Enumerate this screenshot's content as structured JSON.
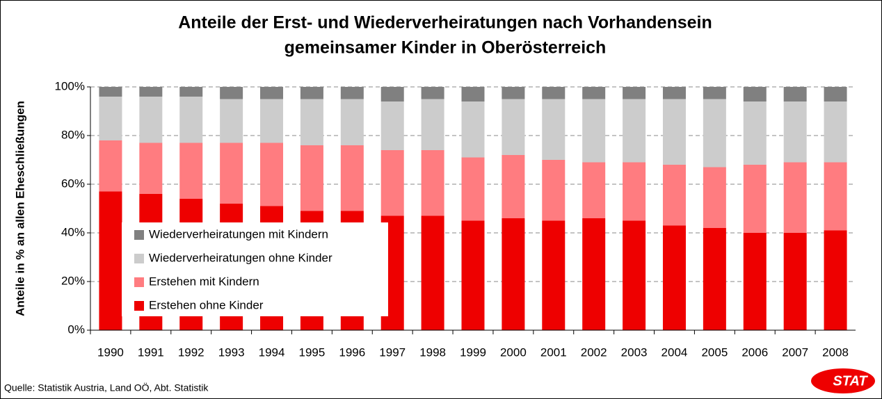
{
  "chart_data": {
    "type": "stacked_bar",
    "title": [
      "Anteile der Erst- und Wiederverheiratungen nach Vorhandensein",
      "gemeinsamer Kinder in Oberösterreich"
    ],
    "y_label": "Anteile in % an allen Eheschließungen",
    "source": "Quelle: Statistik Austria, Land OÖ, Abt. Statistik",
    "logo": "STAT",
    "categories": [
      "1990",
      "1991",
      "1992",
      "1993",
      "1994",
      "1995",
      "1996",
      "1997",
      "1998",
      "1999",
      "2000",
      "2001",
      "2002",
      "2003",
      "2004",
      "2005",
      "2006",
      "2007",
      "2008"
    ],
    "series": [
      {
        "name": "Erstehen ohne Kinder",
        "color": "#ee0000",
        "values": [
          57,
          56,
          54,
          52,
          51,
          49,
          49,
          47,
          47,
          45,
          46,
          45,
          46,
          45,
          43,
          42,
          40,
          40,
          41
        ]
      },
      {
        "name": "Erstehen mit Kindern",
        "color": "#ff7c80",
        "values": [
          21,
          21,
          23,
          25,
          26,
          27,
          27,
          27,
          27,
          26,
          26,
          25,
          23,
          24,
          25,
          25,
          28,
          29,
          28
        ]
      },
      {
        "name": "Wiederverheiratungen ohne Kinder",
        "color": "#cccccc",
        "values": [
          18,
          19,
          19,
          18,
          18,
          19,
          19,
          20,
          21,
          23,
          23,
          25,
          26,
          26,
          27,
          28,
          26,
          25,
          25
        ]
      },
      {
        "name": "Wiederverheiratungen mit Kindern",
        "color": "#808080",
        "values": [
          4,
          4,
          4,
          5,
          5,
          5,
          5,
          6,
          5,
          6,
          5,
          5,
          5,
          5,
          5,
          5,
          6,
          6,
          6
        ]
      }
    ],
    "ylim": [
      0,
      100
    ],
    "yticks": [
      {
        "value": 0,
        "label": "0%"
      },
      {
        "value": 20,
        "label": "20%"
      },
      {
        "value": 40,
        "label": "40%"
      },
      {
        "value": 60,
        "label": "60%"
      },
      {
        "value": 80,
        "label": "80%"
      },
      {
        "value": 100,
        "label": "100%"
      }
    ],
    "grid": true
  }
}
